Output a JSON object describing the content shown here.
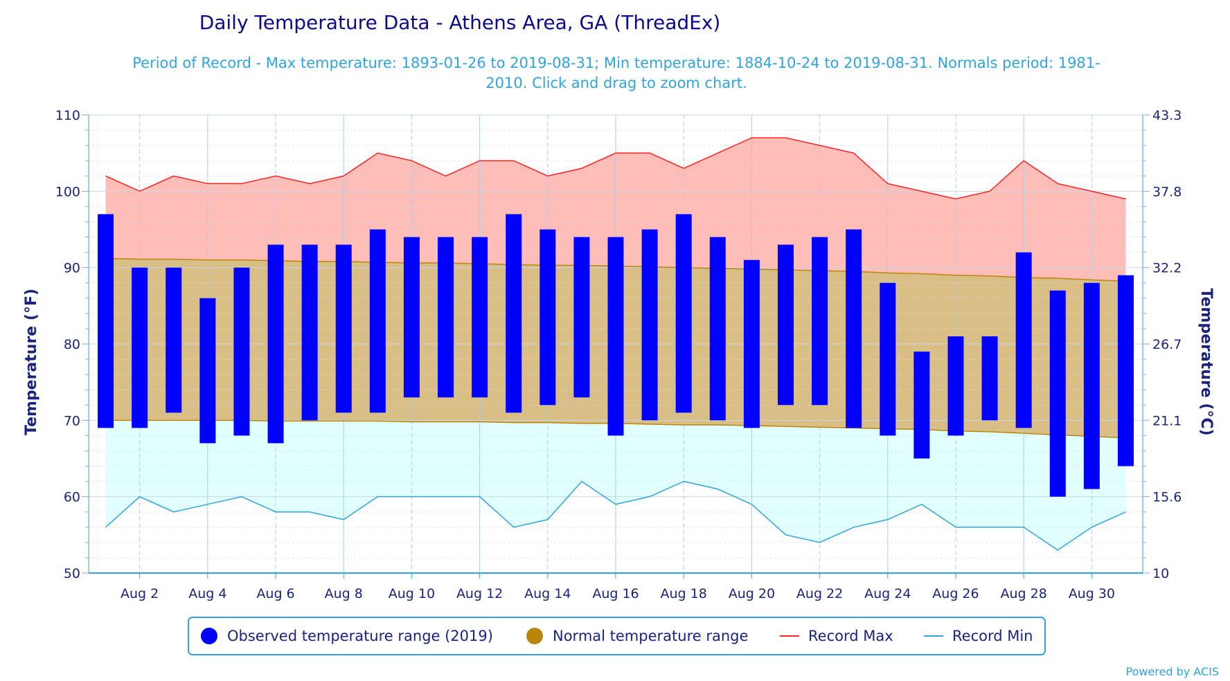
{
  "chart_data": {
    "type": "bar",
    "title": "Daily Temperature Data - Athens Area, GA (ThreadEx)",
    "subtitle_line1": "Period of Record - Max temperature: 1893-01-26 to 2019-08-31; Min temperature: 1884-10-24 to 2019-08-31. Normals period: 1981-",
    "subtitle_line2": "2010. Click and drag to zoom chart.",
    "ylabel_left": "Temperature (°F)",
    "ylabel_right": "Temperature (°C)",
    "ylim": [
      50,
      110
    ],
    "yticks_left": [
      "50",
      "60",
      "70",
      "80",
      "90",
      "100",
      "110"
    ],
    "yticks_right": [
      "10",
      "15.6",
      "21.1",
      "26.7",
      "32.2",
      "37.8",
      "43.3"
    ],
    "x_tick_labels": [
      "Aug 2",
      "Aug 4",
      "Aug 6",
      "Aug 8",
      "Aug 10",
      "Aug 12",
      "Aug 14",
      "Aug 16",
      "Aug 18",
      "Aug 20",
      "Aug 22",
      "Aug 24",
      "Aug 26",
      "Aug 28",
      "Aug 30"
    ],
    "x_tick_days": [
      2,
      4,
      6,
      8,
      10,
      12,
      14,
      16,
      18,
      20,
      22,
      24,
      26,
      28,
      30
    ],
    "days": [
      1,
      2,
      3,
      4,
      5,
      6,
      7,
      8,
      9,
      10,
      11,
      12,
      13,
      14,
      15,
      16,
      17,
      18,
      19,
      20,
      21,
      22,
      23,
      24,
      25,
      26,
      27,
      28,
      29,
      30,
      31
    ],
    "series": [
      {
        "name": "Observed temperature range (2019)",
        "color": "#0000ff",
        "max": [
          97,
          90,
          90,
          86,
          90,
          93,
          93,
          93,
          95,
          94,
          94,
          94,
          97,
          95,
          94,
          94,
          95,
          97,
          94,
          91,
          93,
          94,
          95,
          88,
          79,
          81,
          81,
          92,
          87,
          88,
          89
        ],
        "min": [
          69,
          69,
          71,
          67,
          68,
          67,
          70,
          71,
          71,
          73,
          73,
          73,
          71,
          72,
          73,
          68,
          70,
          71,
          70,
          69,
          72,
          72,
          69,
          68,
          65,
          68,
          70,
          69,
          60,
          61,
          64
        ]
      },
      {
        "name": "Normal temperature range",
        "color": "#b8860b",
        "max": [
          91.2,
          91.1,
          91.1,
          91.0,
          91.0,
          90.9,
          90.8,
          90.8,
          90.7,
          90.6,
          90.6,
          90.5,
          90.4,
          90.3,
          90.3,
          90.2,
          90.1,
          90.0,
          89.9,
          89.8,
          89.7,
          89.6,
          89.5,
          89.3,
          89.2,
          89.0,
          88.9,
          88.7,
          88.6,
          88.4,
          88.2
        ],
        "min": [
          70.0,
          70.0,
          70.0,
          70.0,
          70.0,
          69.9,
          69.9,
          69.9,
          69.9,
          69.8,
          69.8,
          69.8,
          69.7,
          69.7,
          69.6,
          69.6,
          69.5,
          69.4,
          69.4,
          69.3,
          69.2,
          69.1,
          69.0,
          68.9,
          68.8,
          68.6,
          68.5,
          68.3,
          68.1,
          67.9,
          67.7
        ]
      },
      {
        "name": "Record Max",
        "color": "#ff2020",
        "values": [
          102,
          100,
          102,
          101,
          101,
          102,
          101,
          102,
          105,
          104,
          102,
          104,
          104,
          102,
          103,
          105,
          105,
          103,
          105,
          107,
          107,
          106,
          105,
          101,
          100,
          99,
          100,
          104,
          101,
          100,
          99
        ]
      },
      {
        "name": "Record Min",
        "color": "#2fa4dc",
        "values": [
          56,
          60,
          58,
          59,
          60,
          58,
          58,
          57,
          60,
          60,
          60,
          60,
          56,
          57,
          62,
          59,
          60,
          62,
          61,
          59,
          55,
          54,
          56,
          57,
          59,
          56,
          56,
          56,
          53,
          56,
          58
        ]
      }
    ],
    "legend_position": "bottom",
    "grid": true
  },
  "legend": {
    "observed": "Observed temperature range (2019)",
    "normal": "Normal temperature range",
    "record_max": "Record Max",
    "record_min": "Record Min"
  },
  "credit": "Powered by ACIS",
  "colors": {
    "observed": "#0000ff",
    "normal_line": "#b8860b",
    "normal_fill": "#d9bf86",
    "record_max_fill": "#ffbdb8",
    "record_min_fill": "#e0fffe",
    "record_max_line": "#ff2020",
    "record_min_line": "#2fa4dc",
    "axis_text": "#1a237e",
    "grid": "#c9d6ea"
  }
}
